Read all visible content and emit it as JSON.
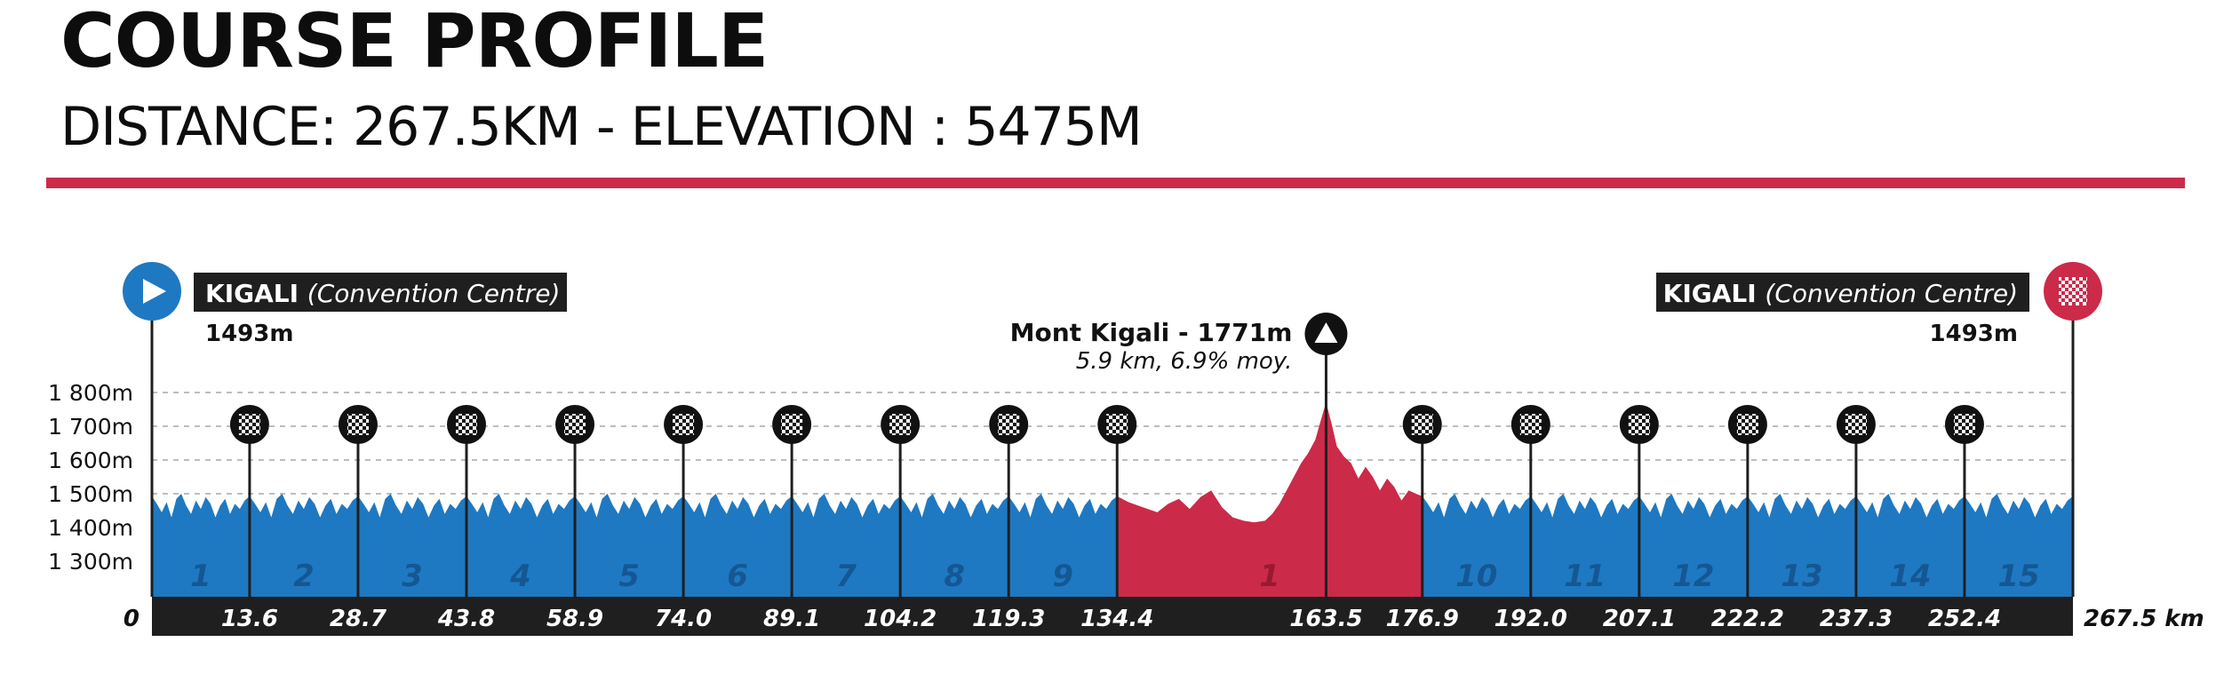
{
  "header": {
    "title": "COURSE PROFILE",
    "distance_text": "DISTANCE: 267.5KM",
    "separator": "-",
    "elevation_text": "ELEVATION : 5475M"
  },
  "colors": {
    "laps_fill": "#1e79c2",
    "climb_fill": "#cc2a49",
    "accent_rule": "#cc2a49",
    "axis_bar": "#1f1f1f"
  },
  "chart_data": {
    "type": "area",
    "title": "",
    "xlabel": "",
    "ylabel": "",
    "x_unit_label": "267.5 km",
    "x_range": [
      0,
      267.5
    ],
    "ylim": [
      1200,
      1860
    ],
    "y_ticks": [
      {
        "value": 1300,
        "label": "1 300m"
      },
      {
        "value": 1400,
        "label": "1 400m"
      },
      {
        "value": 1500,
        "label": "1 500m"
      },
      {
        "value": 1600,
        "label": "1 600m"
      },
      {
        "value": 1700,
        "label": "1 700m"
      },
      {
        "value": 1800,
        "label": "1 800m"
      }
    ],
    "grid": true,
    "x_ticks": [
      {
        "km": 0,
        "label": "0"
      },
      {
        "km": 13.6,
        "label": "13.6"
      },
      {
        "km": 28.7,
        "label": "28.7"
      },
      {
        "km": 43.8,
        "label": "43.8"
      },
      {
        "km": 58.9,
        "label": "58.9"
      },
      {
        "km": 74.0,
        "label": "74.0"
      },
      {
        "km": 89.1,
        "label": "89.1"
      },
      {
        "km": 104.2,
        "label": "104.2"
      },
      {
        "km": 119.3,
        "label": "119.3"
      },
      {
        "km": 134.4,
        "label": "134.4"
      },
      {
        "km": 163.5,
        "label": "163.5"
      },
      {
        "km": 176.9,
        "label": "176.9"
      },
      {
        "km": 192.0,
        "label": "192.0"
      },
      {
        "km": 207.1,
        "label": "207.1"
      },
      {
        "km": 222.2,
        "label": "222.2"
      },
      {
        "km": 237.3,
        "label": "237.3"
      },
      {
        "km": 252.4,
        "label": "252.4"
      },
      {
        "km": 267.5,
        "label": "267.5 km"
      }
    ],
    "lap_markers_km": [
      13.6,
      28.7,
      43.8,
      58.9,
      74.0,
      89.1,
      104.2,
      119.3,
      134.4,
      176.9,
      192.0,
      207.1,
      222.2,
      237.3,
      252.4
    ],
    "segments": [
      {
        "label": "1",
        "start": 0,
        "end": 13.6,
        "kind": "lap"
      },
      {
        "label": "2",
        "start": 13.6,
        "end": 28.7,
        "kind": "lap"
      },
      {
        "label": "3",
        "start": 28.7,
        "end": 43.8,
        "kind": "lap"
      },
      {
        "label": "4",
        "start": 43.8,
        "end": 58.9,
        "kind": "lap"
      },
      {
        "label": "5",
        "start": 58.9,
        "end": 74.0,
        "kind": "lap"
      },
      {
        "label": "6",
        "start": 74.0,
        "end": 89.1,
        "kind": "lap"
      },
      {
        "label": "7",
        "start": 89.1,
        "end": 104.2,
        "kind": "lap"
      },
      {
        "label": "8",
        "start": 104.2,
        "end": 119.3,
        "kind": "lap"
      },
      {
        "label": "9",
        "start": 119.3,
        "end": 134.4,
        "kind": "lap"
      },
      {
        "label": "1",
        "start": 134.4,
        "end": 176.9,
        "kind": "climb"
      },
      {
        "label": "10",
        "start": 176.9,
        "end": 192.0,
        "kind": "lap"
      },
      {
        "label": "11",
        "start": 192.0,
        "end": 207.1,
        "kind": "lap"
      },
      {
        "label": "12",
        "start": 207.1,
        "end": 222.2,
        "kind": "lap"
      },
      {
        "label": "13",
        "start": 222.2,
        "end": 237.3,
        "kind": "lap"
      },
      {
        "label": "14",
        "start": 237.3,
        "end": 252.4,
        "kind": "lap"
      },
      {
        "label": "15",
        "start": 252.4,
        "end": 267.5,
        "kind": "lap"
      }
    ],
    "lap_profile_rel": [
      [
        0,
        1493
      ],
      [
        0.05,
        1470
      ],
      [
        0.1,
        1445
      ],
      [
        0.15,
        1475
      ],
      [
        0.2,
        1430
      ],
      [
        0.25,
        1485
      ],
      [
        0.3,
        1500
      ],
      [
        0.35,
        1465
      ],
      [
        0.4,
        1440
      ],
      [
        0.45,
        1480
      ],
      [
        0.5,
        1455
      ],
      [
        0.55,
        1490
      ],
      [
        0.6,
        1470
      ],
      [
        0.65,
        1430
      ],
      [
        0.7,
        1465
      ],
      [
        0.75,
        1485
      ],
      [
        0.8,
        1440
      ],
      [
        0.85,
        1470
      ],
      [
        0.9,
        1455
      ],
      [
        0.95,
        1480
      ],
      [
        1.0,
        1493
      ]
    ],
    "climb_profile": [
      [
        134.4,
        1493
      ],
      [
        136.0,
        1475
      ],
      [
        138.0,
        1460
      ],
      [
        140.0,
        1445
      ],
      [
        141.5,
        1470
      ],
      [
        143.0,
        1485
      ],
      [
        144.5,
        1455
      ],
      [
        146.0,
        1490
      ],
      [
        147.5,
        1510
      ],
      [
        149.0,
        1460
      ],
      [
        150.5,
        1430
      ],
      [
        152.0,
        1420
      ],
      [
        153.5,
        1415
      ],
      [
        155.0,
        1420
      ],
      [
        156.0,
        1440
      ],
      [
        157.0,
        1470
      ],
      [
        158.0,
        1510
      ],
      [
        159.0,
        1550
      ],
      [
        160.0,
        1590
      ],
      [
        161.0,
        1620
      ],
      [
        162.0,
        1660
      ],
      [
        162.8,
        1720
      ],
      [
        163.5,
        1771
      ],
      [
        164.3,
        1705
      ],
      [
        165.0,
        1640
      ],
      [
        166.0,
        1610
      ],
      [
        167.0,
        1590
      ],
      [
        168.0,
        1545
      ],
      [
        169.0,
        1580
      ],
      [
        170.0,
        1550
      ],
      [
        171.0,
        1510
      ],
      [
        172.0,
        1545
      ],
      [
        173.0,
        1520
      ],
      [
        174.0,
        1480
      ],
      [
        175.0,
        1510
      ],
      [
        176.0,
        1500
      ],
      [
        176.9,
        1493
      ]
    ],
    "start": {
      "place": "KIGALI",
      "detail": "(Convention Centre)",
      "elevation": "1493m"
    },
    "finish": {
      "place": "KIGALI",
      "detail": "(Convention Centre)",
      "elevation": "1493m"
    },
    "summit": {
      "km": 163.5,
      "elevation_value": 1771,
      "name": "Mont Kigali - 1771m",
      "detail": "5.9 km, 6.9% moy."
    }
  }
}
